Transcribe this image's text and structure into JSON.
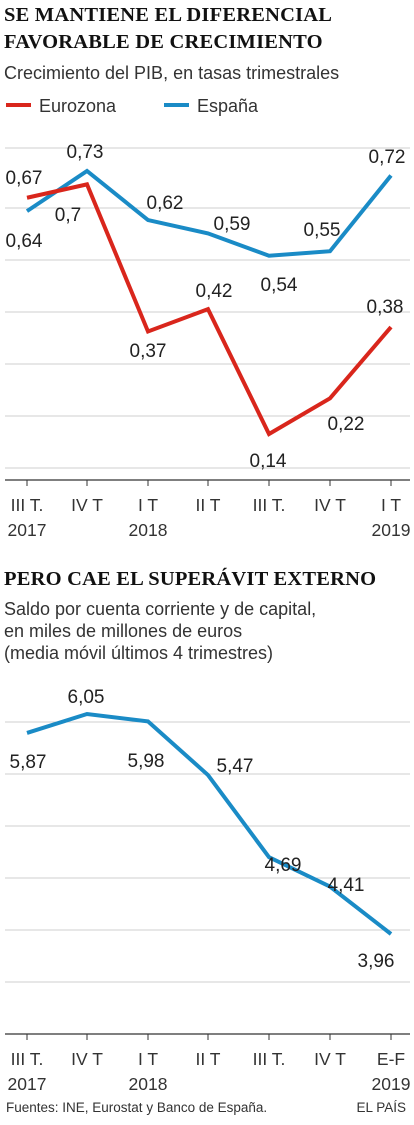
{
  "colors": {
    "eurozona": "#d9261c",
    "espana": "#1a8bc6",
    "grid": "#cfcfcf",
    "text": "#222222"
  },
  "chart_data": [
    {
      "type": "line",
      "title": "SE MANTIENE EL DIFERENCIAL\nFAVORABLE DE CRECIMIENTO",
      "subtitle": "Crecimiento del PIB, en tasas trimestrales",
      "legend": {
        "placement": "top-left",
        "items": [
          "Eurozona",
          "España"
        ]
      },
      "categories": [
        "III T.",
        "IV T",
        "I T",
        "II T",
        "III T.",
        "IV T",
        "I T"
      ],
      "years": [
        {
          "index": 0,
          "label": "2017"
        },
        {
          "index": 2,
          "label": "2018"
        },
        {
          "index": 6,
          "label": "2019"
        }
      ],
      "series": [
        {
          "name": "Eurozona",
          "values": [
            0.67,
            0.7,
            0.37,
            0.42,
            0.14,
            0.22,
            0.38
          ]
        },
        {
          "name": "España",
          "values": [
            0.64,
            0.73,
            0.62,
            0.59,
            0.54,
            0.55,
            0.72
          ]
        }
      ],
      "labels": [
        {
          "series": "Eurozona",
          "texts": [
            "0,67",
            "0,7",
            "0,37",
            "0,42",
            "0,14",
            "0,22",
            "0,38"
          ]
        },
        {
          "series": "España",
          "texts": [
            "0,64",
            "0,73",
            "0,62",
            "0,59",
            "0,54",
            "0,55",
            "0,72"
          ]
        }
      ],
      "ylim": [
        0,
        0.8
      ],
      "grid": true
    },
    {
      "type": "line",
      "title": "PERO CAE EL SUPERÁVIT EXTERNO",
      "subtitle": "Saldo por cuenta corriente y de capital,\nen miles de millones de euros\n(media móvil últimos 4 trimestres)",
      "categories": [
        "III T.",
        "IV T",
        "I T",
        "II T",
        "III T.",
        "IV T",
        "E-F"
      ],
      "years": [
        {
          "index": 0,
          "label": "2017"
        },
        {
          "index": 2,
          "label": "2018"
        },
        {
          "index": 6,
          "label": "2019"
        }
      ],
      "series": [
        {
          "values": [
            5.87,
            6.05,
            5.98,
            5.47,
            4.69,
            4.41,
            3.96
          ]
        }
      ],
      "labels": [
        {
          "texts": [
            "5,87",
            "6,05",
            "5,98",
            "5,47",
            "4,69",
            "4,41",
            "3,96"
          ]
        }
      ],
      "ylim": [
        2.0,
        6.5
      ],
      "grid": true
    }
  ],
  "footer": {
    "sources": "Fuentes: INE, Eurostat y Banco de España.",
    "credit": "EL PAÍS"
  }
}
